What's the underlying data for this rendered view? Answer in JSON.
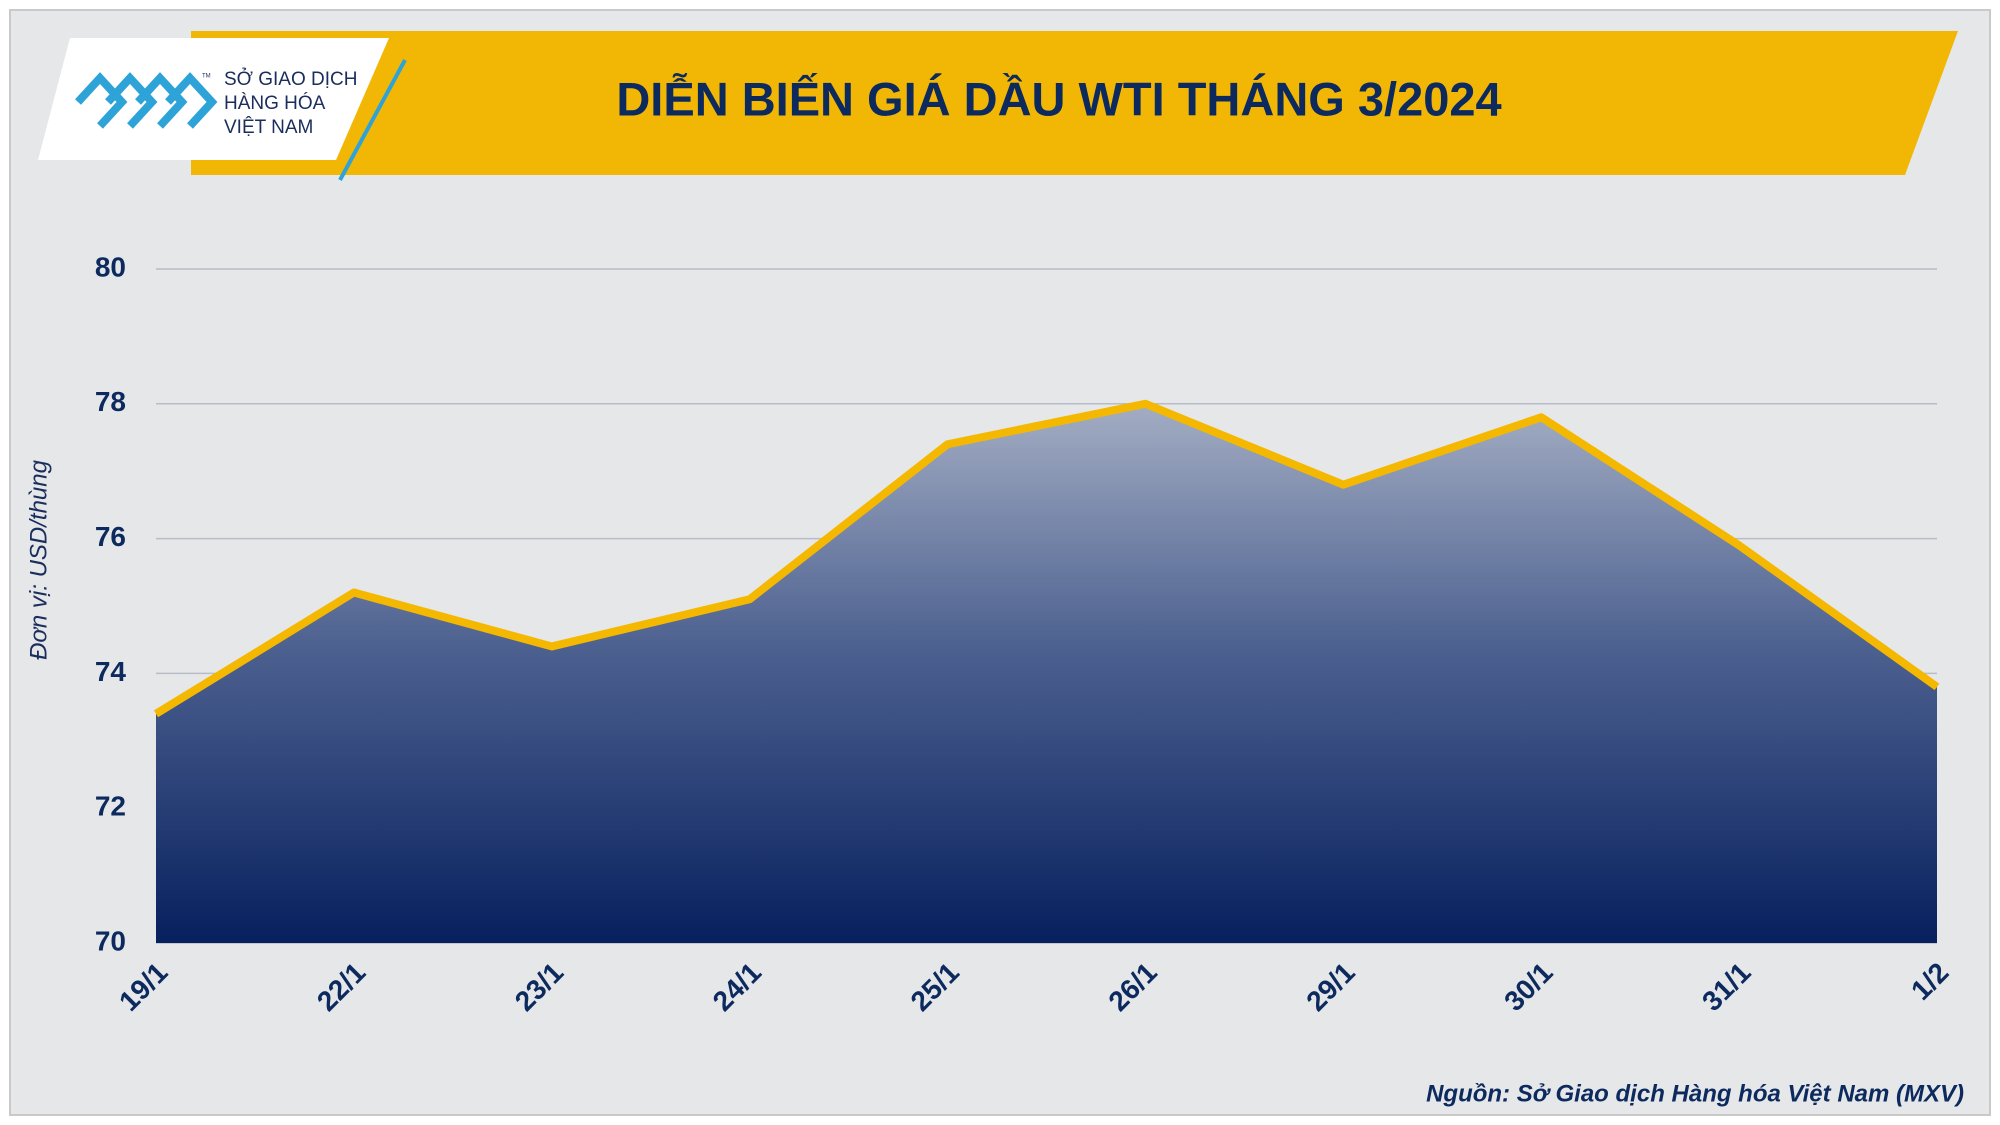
{
  "chart_data": {
    "type": "area",
    "title": "DIỄN BIẾN GIÁ DẦU WTI THÁNG 3/2024",
    "logo": {
      "lines": [
        "SỞ GIAO DỊCH",
        "HÀNG HÓA",
        "VIỆT NAM"
      ],
      "trademark": "TM"
    },
    "y_label": "Đơn vị: USD/thùng",
    "source": "Nguồn: Sở Giao dịch Hàng hóa Việt Nam (MXV)",
    "categories": [
      "19/1",
      "22/1",
      "23/1",
      "24/1",
      "25/1",
      "26/1",
      "29/1",
      "30/1",
      "31/1",
      "1/2"
    ],
    "values": [
      73.4,
      75.2,
      74.4,
      75.1,
      77.4,
      78.0,
      76.8,
      77.8,
      75.9,
      73.8
    ],
    "color": "#f5b800",
    "ylim": [
      70,
      80
    ],
    "yticks": [
      70,
      72,
      74,
      76,
      78,
      80
    ],
    "grid": true
  }
}
